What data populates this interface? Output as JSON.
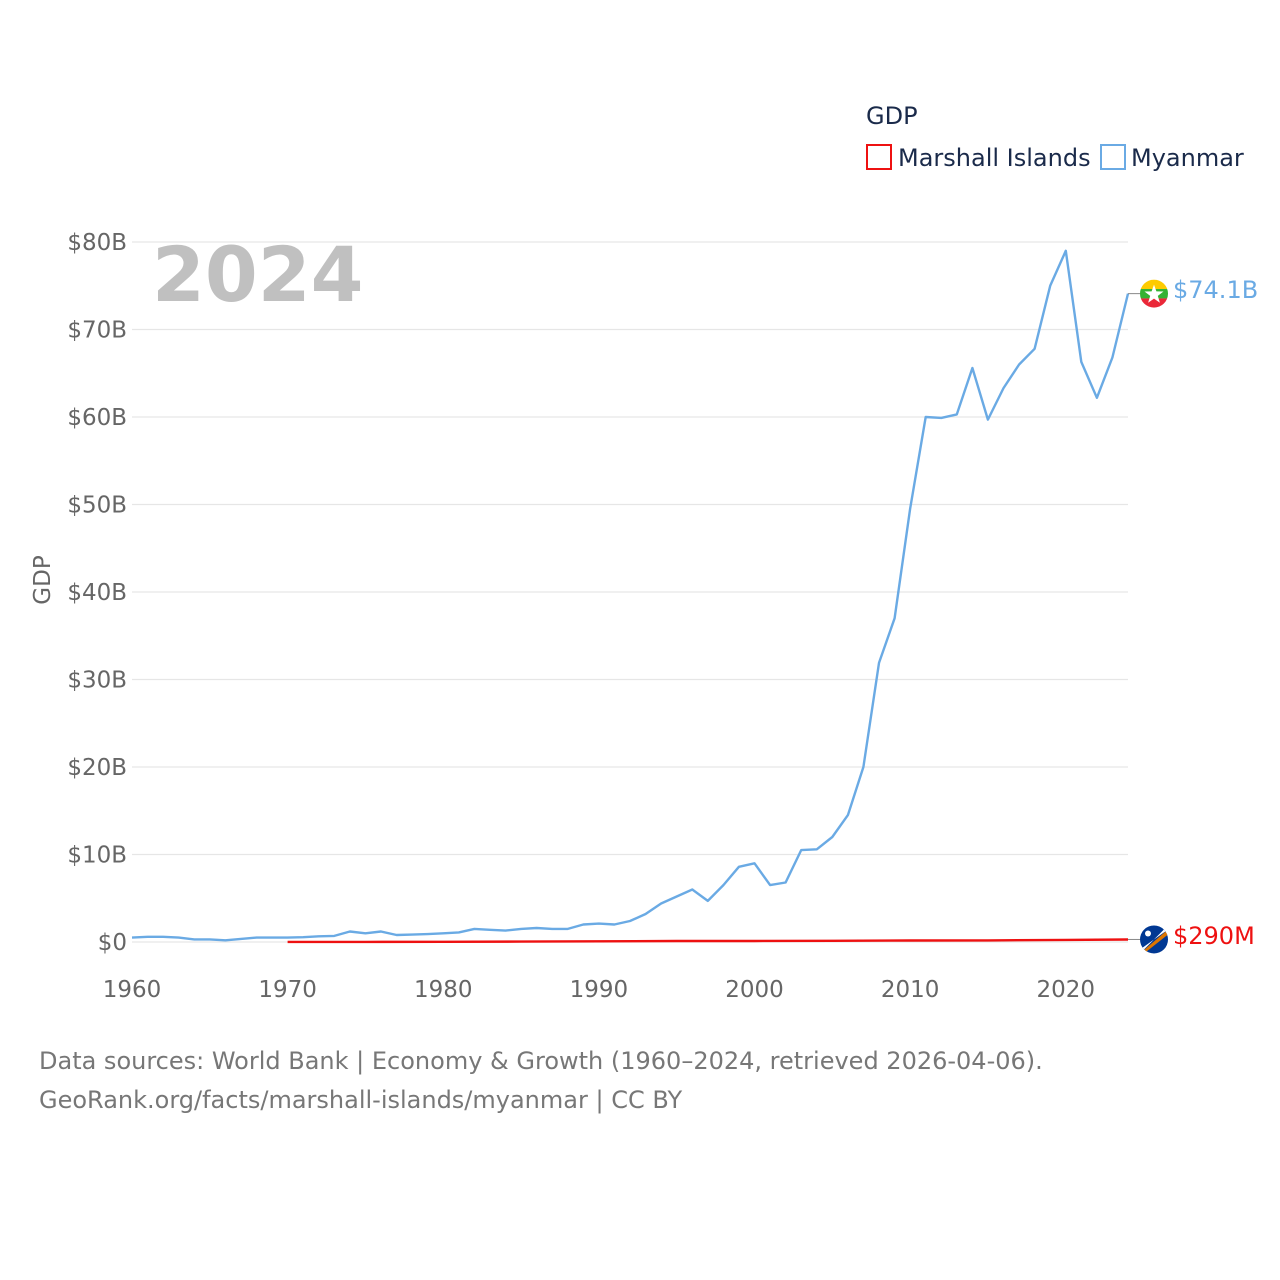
{
  "year_label": "2024",
  "footer": {
    "line1": "Data sources: World Bank | Economy & Growth (1960–2024, retrieved 2026-04-06).",
    "line2": "GeoRank.org/facts/marshall-islands/myanmar | CC BY"
  },
  "colors": {
    "marshall": "#ee1111",
    "myanmar": "#6aaae4",
    "grid": "#e6e6e6",
    "tick": "#666666"
  },
  "chart_data": {
    "type": "line",
    "title": "",
    "legend_title": "GDP",
    "legend_position": "top-right",
    "xlabel": "",
    "ylabel": "GDP",
    "xlim": [
      1960,
      2024
    ],
    "ylim": [
      0,
      80
    ],
    "y_unit": "billion USD",
    "x_ticks": [
      1960,
      1970,
      1980,
      1990,
      2000,
      2010,
      2020
    ],
    "x_tick_labels": [
      "1960",
      "1970",
      "1980",
      "1990",
      "2000",
      "2010",
      "2020"
    ],
    "y_ticks": [
      0,
      10,
      20,
      30,
      40,
      50,
      60,
      70,
      80
    ],
    "y_tick_labels": [
      "$0",
      "$10B",
      "$20B",
      "$30B",
      "$40B",
      "$50B",
      "$60B",
      "$70B",
      "$80B"
    ],
    "series": [
      {
        "name": "Marshall Islands",
        "color": "#ee1111",
        "end_label": "$290M",
        "flag": "marshall-islands-flag",
        "x": [
          1970,
          1975,
          1980,
          1985,
          1990,
          1995,
          2000,
          2005,
          2010,
          2015,
          2020,
          2024
        ],
        "values": [
          0.01,
          0.015,
          0.02,
          0.04,
          0.08,
          0.12,
          0.11,
          0.14,
          0.17,
          0.18,
          0.24,
          0.29
        ]
      },
      {
        "name": "Myanmar",
        "color": "#6aaae4",
        "end_label": "$74.1B",
        "flag": "myanmar-flag",
        "x": [
          1960,
          1961,
          1962,
          1963,
          1964,
          1965,
          1966,
          1967,
          1968,
          1969,
          1970,
          1971,
          1972,
          1973,
          1974,
          1975,
          1976,
          1977,
          1978,
          1979,
          1980,
          1981,
          1982,
          1983,
          1984,
          1985,
          1986,
          1987,
          1988,
          1989,
          1990,
          1991,
          1992,
          1993,
          1994,
          1995,
          1996,
          1997,
          1998,
          1999,
          2000,
          2001,
          2002,
          2003,
          2004,
          2005,
          2006,
          2007,
          2008,
          2009,
          2010,
          2011,
          2012,
          2013,
          2014,
          2015,
          2016,
          2017,
          2018,
          2019,
          2020,
          2021,
          2022,
          2023,
          2024
        ],
        "values": [
          0.5,
          0.6,
          0.6,
          0.5,
          0.3,
          0.3,
          0.2,
          0.35,
          0.5,
          0.5,
          0.5,
          0.55,
          0.65,
          0.7,
          1.2,
          1.0,
          1.2,
          0.8,
          0.85,
          0.9,
          1.0,
          1.1,
          1.5,
          1.4,
          1.3,
          1.5,
          1.6,
          1.5,
          1.5,
          2.0,
          2.1,
          2.0,
          2.4,
          3.2,
          4.4,
          5.2,
          6.0,
          4.7,
          6.5,
          8.6,
          9.0,
          6.5,
          6.8,
          10.5,
          10.6,
          12.0,
          14.5,
          20.0,
          31.9,
          37.0,
          49.5,
          60.0,
          59.9,
          60.3,
          65.6,
          59.7,
          63.3,
          66.0,
          67.8,
          75.0,
          79.0,
          66.3,
          62.2,
          66.8,
          74.1
        ]
      }
    ]
  }
}
